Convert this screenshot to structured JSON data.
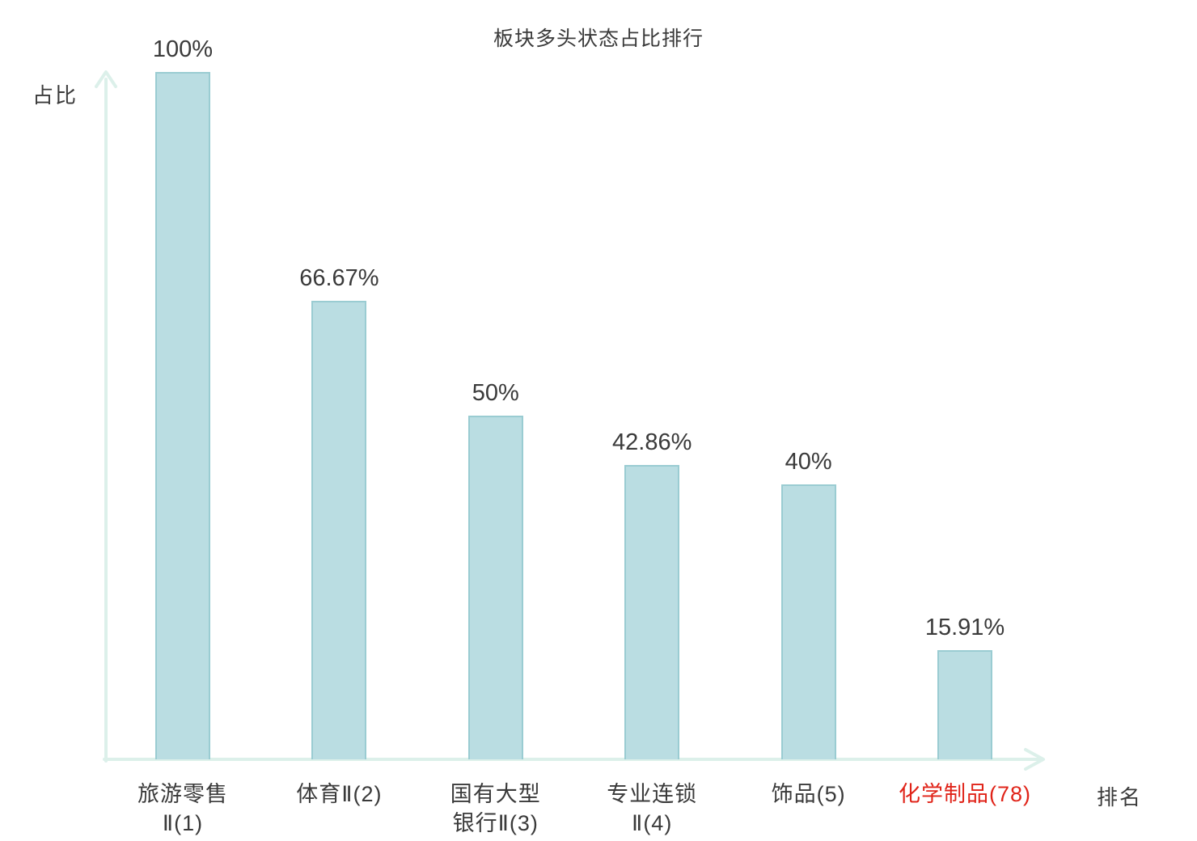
{
  "chart": {
    "title": "板块多头状态占比排行",
    "y_axis_label": "占比",
    "x_axis_label": "排名"
  },
  "chart_data": {
    "type": "bar",
    "title": "板块多头状态占比排行",
    "xlabel": "排名",
    "ylabel": "占比",
    "ylim": [
      0,
      100
    ],
    "grid": false,
    "legend": "none",
    "categories": [
      "旅游零售\nⅡ(1)",
      "体育Ⅱ(2)",
      "国有大型\n银行Ⅱ(3)",
      "专业连锁\nⅡ(4)",
      "饰品(5)",
      "化学制品(78)"
    ],
    "values": [
      100,
      66.67,
      50,
      42.86,
      40,
      15.91
    ],
    "value_labels": [
      "100%",
      "66.67%",
      "50%",
      "42.86%",
      "40%",
      "15.91%"
    ],
    "category_label_colors": [
      "#3a3a3a",
      "#3a3a3a",
      "#3a3a3a",
      "#3a3a3a",
      "#3a3a3a",
      "#e02318"
    ],
    "colors": {
      "bar_fill": "#badde2",
      "bar_border": "#9accd2",
      "axis": "#dcf0ea",
      "text": "#3a3a3a",
      "highlight_text": "#e02318"
    }
  }
}
